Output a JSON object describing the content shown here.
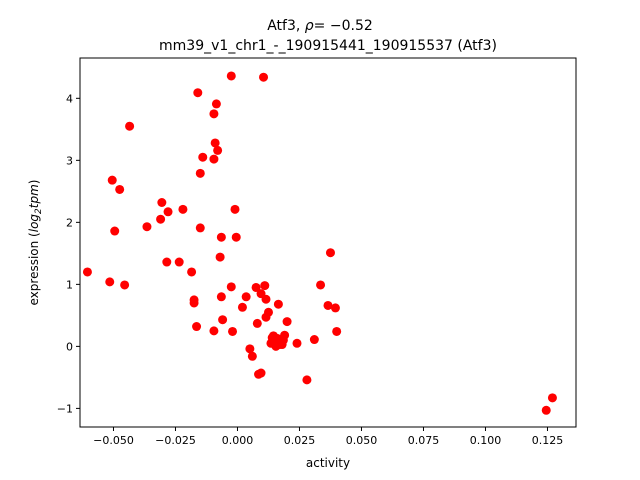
{
  "chart_data": {
    "type": "scatter",
    "title_line1_prefix": "Atf3, ",
    "title_line1_rho": "ρ",
    "title_line1_suffix": "= −0.52",
    "title_line2": "mm39_v1_chr1_-_190915441_190915537 (Atf3)",
    "xlabel": "activity",
    "ylabel_prefix": "expression (",
    "ylabel_math": "log",
    "ylabel_sub": "2",
    "ylabel_math2": "tpm",
    "ylabel_suffix": ")",
    "xlim": [
      -0.0635,
      0.1365
    ],
    "ylim": [
      -1.3,
      4.65
    ],
    "xticks": [
      -0.05,
      -0.025,
      0.0,
      0.025,
      0.05,
      0.075,
      0.1,
      0.125
    ],
    "xtick_labels": [
      "−0.050",
      "−0.025",
      "0.000",
      "0.025",
      "0.050",
      "0.075",
      "0.100",
      "0.125"
    ],
    "yticks": [
      -1,
      0,
      1,
      2,
      3,
      4
    ],
    "ytick_labels": [
      "−1",
      "0",
      "1",
      "2",
      "3",
      "4"
    ],
    "grid": false,
    "marker_color": "#ff0000",
    "points": [
      [
        -0.0605,
        1.2
      ],
      [
        -0.0515,
        1.04
      ],
      [
        -0.0505,
        2.68
      ],
      [
        -0.0495,
        1.86
      ],
      [
        -0.0475,
        2.53
      ],
      [
        -0.0455,
        0.99
      ],
      [
        -0.0435,
        3.55
      ],
      [
        -0.0365,
        1.93
      ],
      [
        -0.0305,
        2.32
      ],
      [
        -0.031,
        2.05
      ],
      [
        -0.0285,
        1.36
      ],
      [
        -0.028,
        2.17
      ],
      [
        -0.0235,
        1.36
      ],
      [
        -0.022,
        2.21
      ],
      [
        -0.0185,
        1.2
      ],
      [
        -0.0175,
        0.75
      ],
      [
        -0.0175,
        0.7
      ],
      [
        -0.016,
        4.09
      ],
      [
        -0.0165,
        0.32
      ],
      [
        -0.015,
        2.79
      ],
      [
        -0.015,
        1.91
      ],
      [
        -0.014,
        3.05
      ],
      [
        -0.0095,
        3.02
      ],
      [
        -0.0095,
        3.75
      ],
      [
        -0.009,
        3.28
      ],
      [
        -0.0085,
        3.91
      ],
      [
        -0.008,
        3.16
      ],
      [
        -0.0095,
        0.25
      ],
      [
        -0.007,
        1.44
      ],
      [
        -0.0065,
        1.76
      ],
      [
        -0.0065,
        0.8
      ],
      [
        -0.006,
        0.43
      ],
      [
        -0.0025,
        4.36
      ],
      [
        -0.0025,
        0.96
      ],
      [
        -0.002,
        0.24
      ],
      [
        -0.001,
        2.21
      ],
      [
        -0.0005,
        1.76
      ],
      [
        0.002,
        0.63
      ],
      [
        0.0035,
        0.8
      ],
      [
        0.005,
        -0.04
      ],
      [
        0.006,
        -0.16
      ],
      [
        0.0075,
        0.95
      ],
      [
        0.008,
        0.37
      ],
      [
        0.0085,
        -0.45
      ],
      [
        0.0095,
        0.85
      ],
      [
        0.0095,
        -0.43
      ],
      [
        0.0105,
        4.34
      ],
      [
        0.011,
        0.98
      ],
      [
        0.0115,
        0.47
      ],
      [
        0.0115,
        0.76
      ],
      [
        0.0125,
        0.55
      ],
      [
        0.0135,
        0.05
      ],
      [
        0.014,
        0.14
      ],
      [
        0.0145,
        0.17
      ],
      [
        0.015,
        0.09
      ],
      [
        0.0155,
        0.0
      ],
      [
        0.016,
        0.13
      ],
      [
        0.0165,
        0.68
      ],
      [
        0.017,
        0.03
      ],
      [
        0.018,
        0.03
      ],
      [
        0.0185,
        0.1
      ],
      [
        0.019,
        0.18
      ],
      [
        0.02,
        0.4
      ],
      [
        0.024,
        0.05
      ],
      [
        0.028,
        -0.54
      ],
      [
        0.031,
        0.11
      ],
      [
        0.0335,
        0.99
      ],
      [
        0.0365,
        0.66
      ],
      [
        0.0375,
        1.51
      ],
      [
        0.0395,
        0.62
      ],
      [
        0.04,
        0.24
      ],
      [
        0.1245,
        -1.03
      ],
      [
        0.127,
        -0.83
      ]
    ]
  }
}
